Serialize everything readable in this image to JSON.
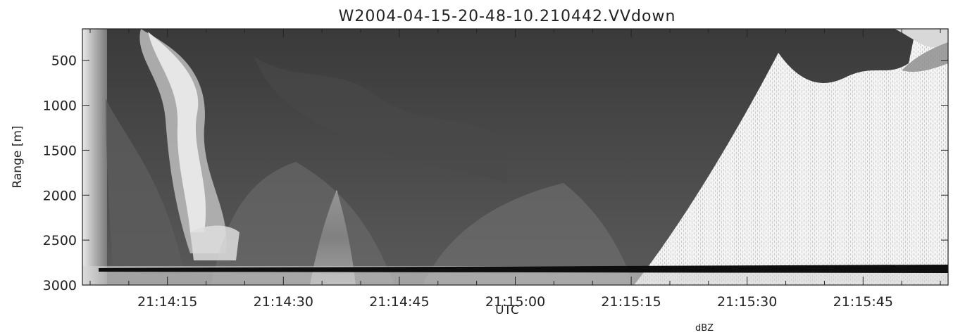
{
  "chart_data": {
    "type": "heatmap",
    "title": "W2004-04-15-20-48-10.210442.VVdown",
    "xlabel": "UTC",
    "ylabel": "Range [m]",
    "colorbar_label_partial": "dBZ",
    "colormap": "grayscale",
    "x_ticks": [
      "21:14:15",
      "21:14:30",
      "21:14:45",
      "21:15:00",
      "21:15:15",
      "21:15:30",
      "21:15:45"
    ],
    "y_ticks": [
      500,
      1000,
      1500,
      2000,
      2500,
      3000
    ],
    "ylim": [
      3000,
      150
    ],
    "y_inverted": true,
    "xlim": [
      "21:14:04",
      "21:15:56"
    ],
    "features": {
      "ground_return_range_m": 2850,
      "clear_region_start": "21:15:17",
      "bright_plume_1": "21:14:15",
      "bright_plume_2": "21:14:36"
    }
  }
}
